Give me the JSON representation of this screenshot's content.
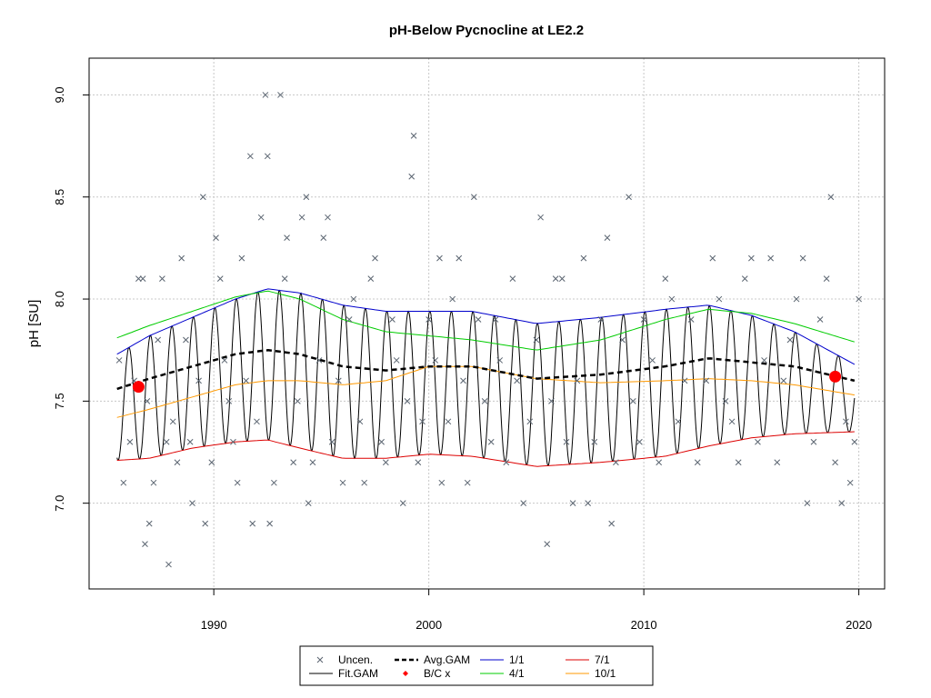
{
  "chart_data": {
    "type": "line",
    "title": "pH-Below Pycnocline at LE2.2",
    "xlabel": "",
    "ylabel": "pH [SU]",
    "xlim": [
      1984.2,
      2021.2
    ],
    "ylim": [
      6.58,
      9.18
    ],
    "x_ticks": [
      1990,
      2000,
      2010,
      2020
    ],
    "y_ticks": [
      7.0,
      7.5,
      8.0,
      8.5,
      9.0
    ],
    "grid": true,
    "legend_position": "bottom-center",
    "colors": {
      "points": "#5a6470",
      "fit": "#000000",
      "avg": "#000000",
      "bc": "#ff0000",
      "jan1": "#0000cc",
      "apr1": "#00cc00",
      "jul1": "#dd0000",
      "oct1": "#ff9900"
    },
    "legend": [
      {
        "label": "Uncen.",
        "symbol": "cross",
        "color": "#5a6470"
      },
      {
        "label": "Avg.GAM",
        "symbol": "dashed",
        "color": "#000000"
      },
      {
        "label": "1/1",
        "symbol": "line",
        "color": "#0000cc"
      },
      {
        "label": "7/1",
        "symbol": "line",
        "color": "#dd0000"
      },
      {
        "label": "Fit.GAM",
        "symbol": "line",
        "color": "#000000"
      },
      {
        "label": "B/C x",
        "symbol": "diamond",
        "color": "#ff0000"
      },
      {
        "label": "4/1",
        "symbol": "line",
        "color": "#00cc00"
      },
      {
        "label": "10/1",
        "symbol": "line",
        "color": "#ff9900"
      }
    ],
    "series": [
      {
        "name": "1/1",
        "x": [
          1985.5,
          1987,
          1989,
          1991,
          1992.5,
          1994,
          1996,
          1998,
          2000,
          2002,
          2005,
          2008,
          2011,
          2013,
          2015,
          2017,
          2019.8
        ],
        "y": [
          7.73,
          7.82,
          7.91,
          8.0,
          8.05,
          8.03,
          7.97,
          7.94,
          7.94,
          7.94,
          7.88,
          7.91,
          7.95,
          7.97,
          7.92,
          7.84,
          7.68
        ]
      },
      {
        "name": "4/1",
        "x": [
          1985.5,
          1987,
          1989,
          1991,
          1992.5,
          1994,
          1996,
          1998,
          2000,
          2002,
          2005,
          2008,
          2011,
          2013,
          2015,
          2017,
          2019.8
        ],
        "y": [
          7.81,
          7.87,
          7.94,
          8.01,
          8.04,
          8.0,
          7.9,
          7.84,
          7.82,
          7.8,
          7.75,
          7.8,
          7.9,
          7.95,
          7.93,
          7.88,
          7.79
        ]
      },
      {
        "name": "7/1",
        "x": [
          1985.5,
          1987,
          1989,
          1991,
          1992.5,
          1994,
          1996,
          1998,
          2000,
          2002,
          2005,
          2008,
          2011,
          2013,
          2015,
          2017,
          2019.8
        ],
        "y": [
          7.21,
          7.22,
          7.27,
          7.3,
          7.31,
          7.27,
          7.22,
          7.22,
          7.24,
          7.23,
          7.18,
          7.2,
          7.23,
          7.28,
          7.32,
          7.34,
          7.35
        ]
      },
      {
        "name": "10/1",
        "x": [
          1985.5,
          1987,
          1989,
          1991,
          1992.5,
          1994,
          1996,
          1998,
          2000,
          2002,
          2005,
          2008,
          2011,
          2013,
          2015,
          2017,
          2019.8
        ],
        "y": [
          7.42,
          7.46,
          7.52,
          7.58,
          7.6,
          7.6,
          7.58,
          7.6,
          7.67,
          7.67,
          7.61,
          7.59,
          7.6,
          7.61,
          7.6,
          7.58,
          7.53
        ]
      },
      {
        "name": "Avg.GAM",
        "x": [
          1985.5,
          1987,
          1989,
          1991,
          1992.5,
          1994,
          1996,
          1998,
          2000,
          2002,
          2005,
          2008,
          2011,
          2013,
          2015,
          2017,
          2019.8
        ],
        "y": [
          7.56,
          7.61,
          7.67,
          7.73,
          7.75,
          7.73,
          7.67,
          7.65,
          7.67,
          7.67,
          7.61,
          7.63,
          7.67,
          7.71,
          7.69,
          7.67,
          7.6
        ]
      }
    ],
    "bc_points": [
      {
        "x": 1986.5,
        "y": 7.57
      },
      {
        "x": 2018.9,
        "y": 7.62
      }
    ],
    "points": [
      [
        1985.6,
        7.7
      ],
      [
        1985.8,
        7.1
      ],
      [
        1986.1,
        7.3
      ],
      [
        1986.3,
        7.6
      ],
      [
        1986.5,
        8.1
      ],
      [
        1986.7,
        8.1
      ],
      [
        1986.9,
        7.5
      ],
      [
        1987.0,
        6.9
      ],
      [
        1986.8,
        6.8
      ],
      [
        1987.2,
        7.1
      ],
      [
        1987.4,
        7.8
      ],
      [
        1987.6,
        8.1
      ],
      [
        1987.8,
        7.3
      ],
      [
        1987.9,
        6.7
      ],
      [
        1988.1,
        7.4
      ],
      [
        1988.3,
        7.2
      ],
      [
        1988.5,
        8.2
      ],
      [
        1988.7,
        7.8
      ],
      [
        1988.9,
        7.3
      ],
      [
        1989.0,
        7.0
      ],
      [
        1989.3,
        7.6
      ],
      [
        1989.5,
        8.5
      ],
      [
        1989.6,
        6.9
      ],
      [
        1989.9,
        7.2
      ],
      [
        1990.1,
        8.3
      ],
      [
        1990.3,
        8.1
      ],
      [
        1990.5,
        7.7
      ],
      [
        1990.7,
        7.5
      ],
      [
        1990.9,
        7.3
      ],
      [
        1991.1,
        7.1
      ],
      [
        1991.3,
        8.2
      ],
      [
        1991.5,
        7.6
      ],
      [
        1991.7,
        8.7
      ],
      [
        1991.8,
        6.9
      ],
      [
        1992.0,
        7.4
      ],
      [
        1992.2,
        8.4
      ],
      [
        1992.4,
        9.0
      ],
      [
        1992.5,
        8.7
      ],
      [
        1992.6,
        6.9
      ],
      [
        1992.8,
        7.1
      ],
      [
        1993.1,
        9.0
      ],
      [
        1993.3,
        8.1
      ],
      [
        1993.4,
        8.3
      ],
      [
        1993.7,
        7.2
      ],
      [
        1993.9,
        7.5
      ],
      [
        1994.1,
        8.4
      ],
      [
        1994.3,
        8.5
      ],
      [
        1994.4,
        7.0
      ],
      [
        1994.6,
        7.2
      ],
      [
        1994.9,
        7.7
      ],
      [
        1995.1,
        8.3
      ],
      [
        1995.3,
        8.4
      ],
      [
        1995.5,
        7.3
      ],
      [
        1995.8,
        7.6
      ],
      [
        1996.0,
        7.1
      ],
      [
        1996.3,
        7.9
      ],
      [
        1996.5,
        8.0
      ],
      [
        1996.8,
        7.4
      ],
      [
        1997.0,
        7.1
      ],
      [
        1997.3,
        8.1
      ],
      [
        1997.5,
        8.2
      ],
      [
        1997.8,
        7.3
      ],
      [
        1998.0,
        7.2
      ],
      [
        1998.3,
        7.9
      ],
      [
        1998.5,
        7.7
      ],
      [
        1998.8,
        7.0
      ],
      [
        1999.0,
        7.5
      ],
      [
        1999.2,
        8.6
      ],
      [
        1999.3,
        8.8
      ],
      [
        1999.5,
        7.2
      ],
      [
        1999.7,
        7.4
      ],
      [
        2000.0,
        7.9
      ],
      [
        2000.3,
        7.7
      ],
      [
        2000.5,
        8.2
      ],
      [
        2000.6,
        7.1
      ],
      [
        2000.9,
        7.4
      ],
      [
        2001.1,
        8.0
      ],
      [
        2001.4,
        8.2
      ],
      [
        2001.6,
        7.6
      ],
      [
        2001.8,
        7.1
      ],
      [
        2002.1,
        8.5
      ],
      [
        2002.3,
        7.9
      ],
      [
        2002.6,
        7.5
      ],
      [
        2002.9,
        7.3
      ],
      [
        2003.1,
        7.9
      ],
      [
        2003.3,
        7.7
      ],
      [
        2003.6,
        7.2
      ],
      [
        2003.9,
        8.1
      ],
      [
        2004.1,
        7.6
      ],
      [
        2004.4,
        7.0
      ],
      [
        2004.7,
        7.4
      ],
      [
        2005.0,
        7.8
      ],
      [
        2005.2,
        8.4
      ],
      [
        2005.5,
        6.8
      ],
      [
        2005.7,
        7.5
      ],
      [
        2005.9,
        8.1
      ],
      [
        2006.2,
        8.1
      ],
      [
        2006.4,
        7.3
      ],
      [
        2006.7,
        7.0
      ],
      [
        2006.9,
        7.6
      ],
      [
        2007.2,
        8.2
      ],
      [
        2007.4,
        7.0
      ],
      [
        2007.7,
        7.3
      ],
      [
        2008.0,
        7.9
      ],
      [
        2008.3,
        8.3
      ],
      [
        2008.5,
        6.9
      ],
      [
        2008.7,
        7.2
      ],
      [
        2009.0,
        7.8
      ],
      [
        2009.3,
        8.5
      ],
      [
        2009.5,
        7.5
      ],
      [
        2009.8,
        7.3
      ],
      [
        2010.0,
        7.9
      ],
      [
        2010.4,
        7.7
      ],
      [
        2010.7,
        7.2
      ],
      [
        2011.0,
        8.1
      ],
      [
        2011.3,
        8.0
      ],
      [
        2011.6,
        7.4
      ],
      [
        2011.9,
        7.6
      ],
      [
        2012.2,
        7.9
      ],
      [
        2012.5,
        7.2
      ],
      [
        2012.9,
        7.6
      ],
      [
        2013.2,
        8.2
      ],
      [
        2013.5,
        8.0
      ],
      [
        2013.8,
        7.5
      ],
      [
        2014.1,
        7.4
      ],
      [
        2014.4,
        7.2
      ],
      [
        2014.7,
        8.1
      ],
      [
        2015.0,
        8.2
      ],
      [
        2015.3,
        7.3
      ],
      [
        2015.6,
        7.7
      ],
      [
        2015.9,
        8.2
      ],
      [
        2016.2,
        7.2
      ],
      [
        2016.5,
        7.6
      ],
      [
        2016.8,
        7.8
      ],
      [
        2017.1,
        8.0
      ],
      [
        2017.4,
        8.2
      ],
      [
        2017.6,
        7.0
      ],
      [
        2017.9,
        7.3
      ],
      [
        2018.2,
        7.9
      ],
      [
        2018.5,
        8.1
      ],
      [
        2018.7,
        8.5
      ],
      [
        2018.9,
        7.2
      ],
      [
        2019.2,
        7.0
      ],
      [
        2019.4,
        7.4
      ],
      [
        2019.6,
        7.1
      ],
      [
        2019.8,
        7.3
      ],
      [
        2020.0,
        8.0
      ]
    ]
  }
}
